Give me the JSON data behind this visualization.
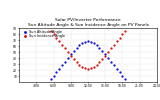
{
  "title": "Solar PV/Inverter Performance\nSun Altitude Angle & Sun Incidence Angle on PV Panels",
  "title_fontsize": 3.2,
  "xlim": [
    0,
    24
  ],
  "ylim": [
    0,
    90
  ],
  "yticks": [
    10,
    20,
    30,
    40,
    50,
    60,
    70,
    80,
    90
  ],
  "ytick_labels": [
    "10",
    "20",
    "30",
    "40",
    "50",
    "60",
    "70",
    "80",
    "90"
  ],
  "xticks": [
    3,
    6,
    9,
    12,
    15,
    18,
    21,
    24
  ],
  "xtick_labels": [
    "3:00",
    "6:00",
    "9:00",
    "12:00",
    "15:00",
    "18:00",
    "21:00",
    "24:00"
  ],
  "grid_color": "#bbbbbb",
  "bg_color": "#ffffff",
  "sun_altitude_color": "#0000dd",
  "sun_incidence_color": "#dd0000",
  "legend_fontsize": 2.5,
  "tick_fontsize": 2.2,
  "sun_altitude_hours": [
    5.5,
    6.0,
    6.5,
    7.0,
    7.5,
    8.0,
    8.5,
    9.0,
    9.5,
    10.0,
    10.5,
    11.0,
    11.5,
    12.0,
    12.5,
    13.0,
    13.5,
    14.0,
    14.5,
    15.0,
    15.5,
    16.0,
    16.5,
    17.0,
    17.5,
    18.0,
    18.5
  ],
  "sun_altitude_angles": [
    5,
    10,
    16,
    22,
    28,
    34,
    40,
    46,
    52,
    57,
    62,
    65,
    67,
    68,
    67,
    65,
    62,
    57,
    52,
    46,
    40,
    34,
    28,
    22,
    16,
    10,
    5
  ],
  "sun_incidence_hours": [
    5.5,
    6.0,
    6.5,
    7.0,
    7.5,
    8.0,
    8.5,
    9.0,
    9.5,
    10.0,
    10.5,
    11.0,
    11.5,
    12.0,
    12.5,
    13.0,
    13.5,
    14.0,
    14.5,
    15.0,
    15.5,
    16.0,
    16.5,
    17.0,
    17.5,
    18.0,
    18.5
  ],
  "sun_incidence_angles": [
    85,
    80,
    74,
    68,
    62,
    56,
    50,
    44,
    38,
    33,
    28,
    25,
    23,
    22,
    23,
    25,
    28,
    33,
    38,
    44,
    50,
    56,
    62,
    68,
    74,
    80,
    85
  ]
}
